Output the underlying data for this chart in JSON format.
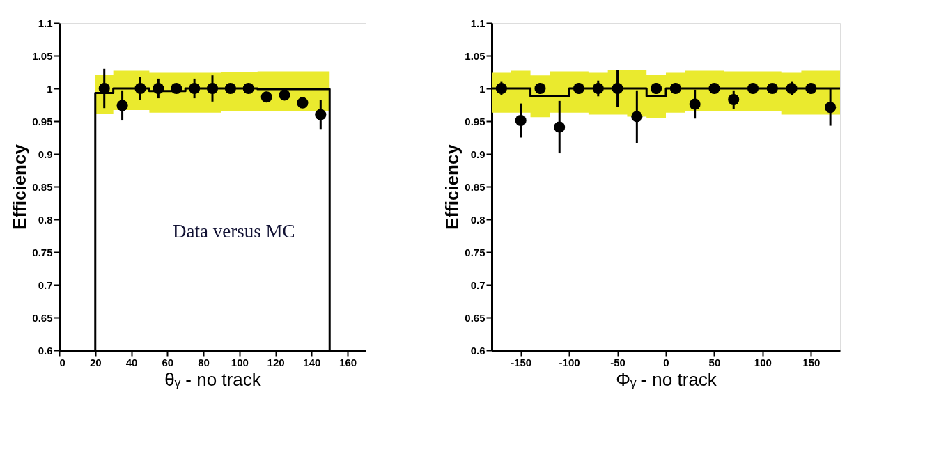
{
  "chart_data": [
    {
      "type": "scatter",
      "xlabel": "θᵧ - no track",
      "ylabel": "Efficiency",
      "xlim": [
        0,
        170
      ],
      "ylim": [
        0.6,
        1.1
      ],
      "xticks": [
        0,
        20,
        40,
        60,
        80,
        100,
        120,
        140,
        160
      ],
      "yticks": [
        0.6,
        0.65,
        0.7,
        0.75,
        0.8,
        0.85,
        0.9,
        0.95,
        1,
        1.05,
        1.1
      ],
      "grid": false,
      "annotations": [
        "Data versus MC"
      ],
      "series": [
        {
          "type": "step",
          "color": "#000000",
          "x": [
            20,
            20,
            30,
            40,
            50,
            60,
            70,
            80,
            90,
            100,
            110,
            120,
            130,
            140,
            150,
            150
          ],
          "values": [
            0.6,
            0.993,
            1.0,
            1.0,
            0.996,
            0.996,
            1.0,
            1.0,
            1.0,
            1.0,
            0.999,
            0.999,
            0.999,
            0.999,
            0.999,
            0.6
          ],
          "lower": [
            null,
            0.961,
            0.967,
            0.967,
            0.963,
            0.963,
            0.963,
            0.963,
            0.965,
            0.965,
            0.965,
            0.965,
            0.966,
            0.966,
            0.966,
            null
          ],
          "upper": [
            null,
            1.021,
            1.027,
            1.027,
            1.024,
            1.024,
            1.024,
            1.024,
            1.025,
            1.025,
            1.026,
            1.026,
            1.026,
            1.026,
            1.026,
            null
          ]
        },
        {
          "color": "#000000",
          "marker": "circle",
          "x": [
            25,
            35,
            45,
            55,
            65,
            75,
            85,
            95,
            105,
            115,
            125,
            135,
            145
          ],
          "values": [
            1.0,
            0.974,
            1.0,
            1.0,
            1.0,
            1.0,
            1.0,
            1.0,
            1.0,
            0.987,
            0.99,
            0.978,
            0.96
          ],
          "errors": [
            0.03,
            0.023,
            0.017,
            0.015,
            0.005,
            0.015,
            0.02,
            0.005,
            0.005,
            0.008,
            0.005,
            0.005,
            0.022
          ]
        }
      ]
    },
    {
      "type": "scatter",
      "xlabel": "Φᵧ - no track",
      "ylabel": "Efficiency",
      "xlim": [
        -180,
        180
      ],
      "ylim": [
        0.6,
        1.1
      ],
      "xticks": [
        -150,
        -100,
        -50,
        0,
        50,
        100,
        150
      ],
      "yticks": [
        0.6,
        0.65,
        0.7,
        0.75,
        0.8,
        0.85,
        0.9,
        0.95,
        1,
        1.05,
        1.1
      ],
      "grid": false,
      "series": [
        {
          "type": "step",
          "color": "#000000",
          "x": [
            -180,
            -160,
            -140,
            -120,
            -100,
            -80,
            -60,
            -40,
            -20,
            0,
            20,
            40,
            60,
            80,
            100,
            120,
            140,
            160,
            180
          ],
          "values": [
            1.0,
            1.0,
            0.988,
            0.988,
            1.0,
            1.0,
            1.0,
            1.0,
            0.988,
            1.0,
            1.0,
            1.0,
            1.0,
            1.0,
            1.0,
            1.0,
            1.0,
            1.0,
            1.0
          ],
          "lower": [
            0.963,
            0.963,
            0.956,
            0.963,
            0.963,
            0.96,
            0.96,
            0.957,
            0.955,
            0.963,
            0.965,
            0.965,
            0.965,
            0.965,
            0.965,
            0.96,
            0.96,
            0.96,
            0.96
          ],
          "upper": [
            1.024,
            1.027,
            1.02,
            1.026,
            1.026,
            1.024,
            1.028,
            1.028,
            1.021,
            1.024,
            1.027,
            1.027,
            1.026,
            1.026,
            1.026,
            1.024,
            1.027,
            1.027,
            1.027
          ]
        },
        {
          "color": "#000000",
          "marker": "circle",
          "x": [
            -170,
            -150,
            -130,
            -110,
            -90,
            -70,
            -50,
            -30,
            -10,
            10,
            30,
            50,
            70,
            90,
            110,
            130,
            150,
            170
          ],
          "values": [
            1.0,
            0.951,
            1.0,
            0.941,
            1.0,
            1.0,
            1.0,
            0.957,
            1.0,
            1.0,
            0.976,
            1.0,
            0.983,
            1.0,
            1.0,
            1.0,
            1.0,
            0.971
          ],
          "errors": [
            0.01,
            0.026,
            0.008,
            0.04,
            0.008,
            0.012,
            0.028,
            0.04,
            0.008,
            0.008,
            0.022,
            0.005,
            0.014,
            0.005,
            0.005,
            0.01,
            0.008,
            0.028
          ]
        }
      ]
    }
  ]
}
